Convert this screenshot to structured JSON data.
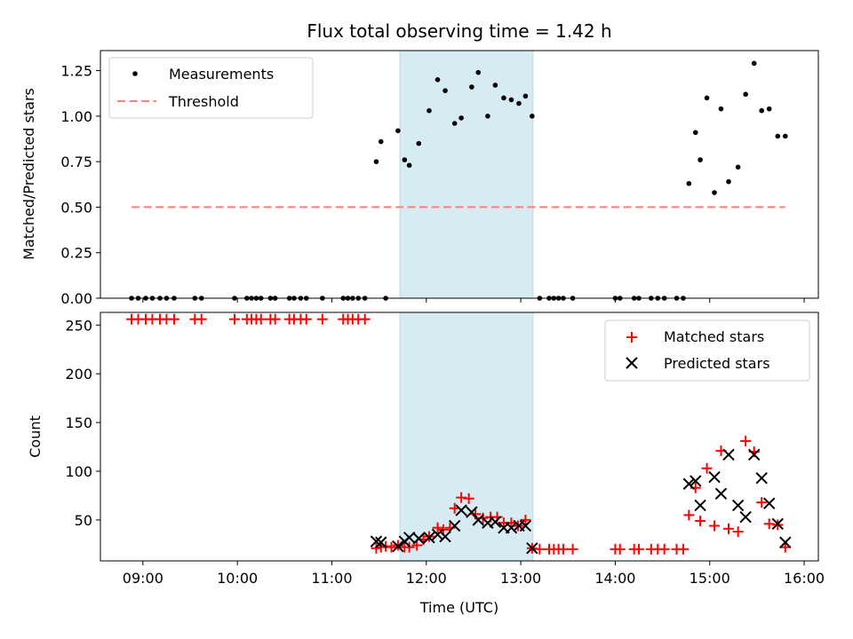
{
  "chart_data": [
    {
      "type": "scatter",
      "panel": "top",
      "title": "Flux total observing time = 1.42 h",
      "xlabel": "",
      "ylabel": "Matched/Predicted stars",
      "xlim": [
        8.55,
        16.15
      ],
      "ylim": [
        0,
        1.36
      ],
      "yticks": [
        0.0,
        0.25,
        0.5,
        0.75,
        1.0,
        1.25
      ],
      "ytick_labels": [
        "0.00",
        "0.25",
        "0.50",
        "0.75",
        "1.00",
        "1.25"
      ],
      "highlight_span": [
        11.72,
        13.13
      ],
      "legend_position": "top-left",
      "series": [
        {
          "name": "Measurements",
          "color": "#000000",
          "marker": "dot",
          "x": [
            8.88,
            8.95,
            9.03,
            9.1,
            9.18,
            9.25,
            9.33,
            9.55,
            9.62,
            9.97,
            10.1,
            10.15,
            10.2,
            10.25,
            10.35,
            10.4,
            10.55,
            10.6,
            10.67,
            10.73,
            10.9,
            11.12,
            11.17,
            11.22,
            11.28,
            11.35,
            11.57,
            11.47,
            11.52,
            11.7,
            11.77,
            11.82,
            11.92,
            12.03,
            12.12,
            12.2,
            12.3,
            12.37,
            12.48,
            12.55,
            12.65,
            12.73,
            12.82,
            12.9,
            12.98,
            13.05,
            13.12,
            13.2,
            13.3,
            13.35,
            13.4,
            13.45,
            13.55,
            14.0,
            14.05,
            14.2,
            14.25,
            14.38,
            14.45,
            14.52,
            14.65,
            14.72,
            14.78,
            14.85,
            14.9,
            14.97,
            15.05,
            15.12,
            15.2,
            15.3,
            15.38,
            15.47,
            15.55,
            15.63,
            15.72,
            15.8
          ],
          "y": [
            0,
            0,
            0,
            0,
            0,
            0,
            0,
            0,
            0,
            0,
            0,
            0,
            0,
            0,
            0,
            0,
            0,
            0,
            0,
            0,
            0,
            0,
            0,
            0,
            0,
            0,
            0,
            0.75,
            0.86,
            0.92,
            0.76,
            0.73,
            0.85,
            1.03,
            1.2,
            1.14,
            0.96,
            0.99,
            1.16,
            1.24,
            1.0,
            1.17,
            1.1,
            1.09,
            1.07,
            1.11,
            1.0,
            0,
            0,
            0,
            0,
            0,
            0,
            0,
            0,
            0,
            0,
            0,
            0,
            0,
            0,
            0,
            0.63,
            0.91,
            0.76,
            1.1,
            0.58,
            1.04,
            0.64,
            0.72,
            1.12,
            1.29,
            1.03,
            1.04,
            0.89,
            0.89
          ]
        },
        {
          "name": "Threshold",
          "color": "#ff7f7f",
          "style": "dashed",
          "x": [
            8.88,
            15.8
          ],
          "y": [
            0.5,
            0.5
          ]
        }
      ]
    },
    {
      "type": "scatter",
      "panel": "bottom",
      "title": "",
      "xlabel": "Time (UTC)",
      "ylabel": "Count",
      "xlim": [
        8.55,
        16.15
      ],
      "ylim": [
        8,
        263
      ],
      "yticks": [
        50,
        100,
        150,
        200,
        250
      ],
      "ytick_labels": [
        "50",
        "100",
        "150",
        "200",
        "250"
      ],
      "xticks": [
        9,
        10,
        11,
        12,
        13,
        14,
        15,
        16
      ],
      "xtick_labels": [
        "09:00",
        "10:00",
        "11:00",
        "12:00",
        "13:00",
        "14:00",
        "15:00",
        "16:00"
      ],
      "highlight_span": [
        11.72,
        13.13
      ],
      "legend_position": "top-right",
      "series": [
        {
          "name": "Matched stars",
          "color": "#ff0000",
          "marker": "plus",
          "x": [
            8.88,
            8.95,
            9.03,
            9.1,
            9.18,
            9.25,
            9.33,
            9.55,
            9.62,
            9.97,
            10.1,
            10.15,
            10.2,
            10.25,
            10.35,
            10.4,
            10.55,
            10.6,
            10.67,
            10.73,
            10.9,
            11.12,
            11.17,
            11.22,
            11.28,
            11.35,
            11.47,
            11.52,
            11.57,
            11.63,
            11.7,
            11.77,
            11.82,
            11.9,
            11.97,
            12.03,
            12.12,
            12.18,
            12.25,
            12.3,
            12.37,
            12.45,
            12.52,
            12.6,
            12.68,
            12.75,
            12.82,
            12.9,
            12.97,
            13.05,
            13.12,
            13.2,
            13.3,
            13.35,
            13.4,
            13.45,
            13.55,
            14.0,
            14.05,
            14.2,
            14.25,
            14.38,
            14.45,
            14.52,
            14.65,
            14.72,
            14.78,
            14.85,
            14.9,
            14.97,
            15.05,
            15.12,
            15.2,
            15.3,
            15.38,
            15.47,
            15.55,
            15.63,
            15.72,
            15.8
          ],
          "y": [
            256,
            256,
            256,
            256,
            256,
            256,
            256,
            256,
            256,
            256,
            256,
            256,
            256,
            256,
            256,
            256,
            256,
            256,
            256,
            256,
            256,
            256,
            256,
            256,
            256,
            256,
            21,
            22,
            23,
            22,
            24,
            22,
            22,
            24,
            30,
            33,
            42,
            40,
            42,
            62,
            73,
            72,
            56,
            52,
            53,
            53,
            47,
            47,
            44,
            50,
            21,
            20,
            20,
            20,
            20,
            20,
            20,
            20,
            20,
            20,
            20,
            20,
            20,
            20,
            20,
            20,
            55,
            83,
            49,
            103,
            44,
            121,
            41,
            38,
            131,
            120,
            68,
            46,
            45,
            22
          ]
        },
        {
          "name": "Predicted stars",
          "color": "#000000",
          "marker": "x",
          "x": [
            11.47,
            11.52,
            11.7,
            11.77,
            11.82,
            11.92,
            12.03,
            12.12,
            12.2,
            12.3,
            12.37,
            12.48,
            12.55,
            12.65,
            12.73,
            12.82,
            12.9,
            12.98,
            13.05,
            13.12,
            14.78,
            14.85,
            14.9,
            15.05,
            15.12,
            15.2,
            15.3,
            15.38,
            15.47,
            15.55,
            15.63,
            15.72,
            15.8
          ],
          "y": [
            28,
            27,
            23,
            28,
            32,
            31,
            32,
            35,
            33,
            44,
            60,
            58,
            50,
            47,
            48,
            42,
            42,
            44,
            44,
            21,
            87,
            90,
            65,
            94,
            77,
            117,
            65,
            53,
            117,
            93,
            67,
            46,
            27
          ]
        }
      ]
    }
  ]
}
